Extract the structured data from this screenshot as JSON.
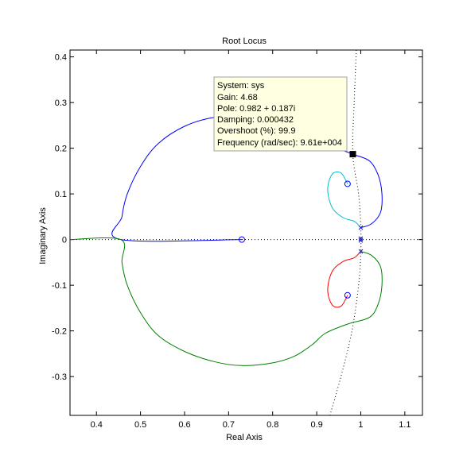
{
  "chart_data": {
    "type": "line",
    "title": "Root Locus",
    "xlabel": "Real Axis",
    "ylabel": "Imaginary Axis",
    "xlim": [
      0.34,
      1.14
    ],
    "ylim": [
      -0.385,
      0.415
    ],
    "xticks": [
      0.4,
      0.5,
      0.6,
      0.7,
      0.8,
      0.9,
      1,
      1.1
    ],
    "xtick_labels": [
      "0.4",
      "0.5",
      "0.6",
      "0.7",
      "0.8",
      "0.9",
      "1",
      "1.1"
    ],
    "yticks": [
      -0.3,
      -0.2,
      -0.1,
      0,
      0.1,
      0.2,
      0.3,
      0.4
    ],
    "ytick_labels": [
      "-0.3",
      "-0.2",
      "-0.1",
      "0",
      "0.1",
      "0.2",
      "0.3",
      "0.4"
    ],
    "grid": false,
    "zeros": [
      [
        0.73,
        0
      ],
      [
        0.97,
        0.122
      ],
      [
        0.97,
        -0.122
      ]
    ],
    "poles": [
      [
        1,
        0.026
      ],
      [
        1,
        0.002
      ],
      [
        1,
        -0.002
      ],
      [
        1,
        -0.026
      ]
    ],
    "series": [
      {
        "color": "#0000ff",
        "points": [
          [
            0.73,
            0
          ],
          [
            0.455,
            0
          ],
          [
            0.458,
            0.05
          ],
          [
            0.47,
            0.1
          ],
          [
            0.5,
            0.16
          ],
          [
            0.54,
            0.21
          ],
          [
            0.6,
            0.248
          ],
          [
            0.67,
            0.268
          ],
          [
            0.73,
            0.268
          ],
          [
            0.8,
            0.256
          ],
          [
            0.87,
            0.232
          ],
          [
            0.93,
            0.206
          ],
          [
            0.982,
            0.187
          ],
          [
            1.02,
            0.172
          ],
          [
            1.04,
            0.14
          ],
          [
            1.048,
            0.1
          ],
          [
            1.045,
            0.06
          ],
          [
            1.025,
            0.035
          ],
          [
            1,
            0.026
          ]
        ]
      },
      {
        "color": "#00bfd0",
        "points": [
          [
            0.97,
            0.122
          ],
          [
            0.955,
            0.146
          ],
          [
            0.935,
            0.143
          ],
          [
            0.925,
            0.11
          ],
          [
            0.935,
            0.07
          ],
          [
            0.96,
            0.048
          ],
          [
            0.985,
            0.04
          ],
          [
            1,
            0.026
          ]
        ]
      },
      {
        "color": "#008000",
        "points": [
          [
            0.34,
            0
          ],
          [
            0.455,
            0
          ],
          [
            0.458,
            -0.05
          ],
          [
            0.47,
            -0.1
          ],
          [
            0.5,
            -0.16
          ],
          [
            0.54,
            -0.21
          ],
          [
            0.6,
            -0.245
          ],
          [
            0.67,
            -0.268
          ],
          [
            0.73,
            -0.276
          ],
          [
            0.8,
            -0.27
          ],
          [
            0.85,
            -0.255
          ],
          [
            0.89,
            -0.23
          ],
          [
            0.92,
            -0.205
          ],
          [
            0.97,
            -0.185
          ],
          [
            1.02,
            -0.17
          ],
          [
            1.04,
            -0.14
          ],
          [
            1.048,
            -0.1
          ],
          [
            1.045,
            -0.06
          ],
          [
            1.025,
            -0.035
          ],
          [
            1,
            -0.026
          ]
        ]
      },
      {
        "color": "#ff0000",
        "points": [
          [
            0.97,
            -0.122
          ],
          [
            0.955,
            -0.146
          ],
          [
            0.935,
            -0.143
          ],
          [
            0.925,
            -0.11
          ],
          [
            0.935,
            -0.07
          ],
          [
            0.96,
            -0.048
          ],
          [
            0.985,
            -0.04
          ],
          [
            1,
            -0.026
          ]
        ]
      }
    ],
    "reference_curve": {
      "color": "#000000",
      "style": "dotted",
      "points": [
        [
          0.99,
          0.415
        ],
        [
          0.985,
          0.3
        ],
        [
          0.982,
          0.187
        ],
        [
          0.995,
          0.1
        ],
        [
          1,
          0.03
        ],
        [
          1,
          -0.03
        ],
        [
          0.995,
          -0.1
        ],
        [
          0.98,
          -0.2
        ],
        [
          0.955,
          -0.3
        ],
        [
          0.93,
          -0.385
        ]
      ]
    },
    "marker": {
      "point": [
        0.982,
        0.187
      ],
      "color": "#000000"
    },
    "datatip": {
      "lines": [
        "System: sys",
        "Gain: 4.68",
        "Pole: 0.982 + 0.187i",
        "Damping: 0.000432",
        "Overshoot (%): 99.9",
        "Frequency (rad/sec): 9.61e+004"
      ],
      "background": "#ffffe1",
      "border": "#a0a0a0"
    }
  }
}
